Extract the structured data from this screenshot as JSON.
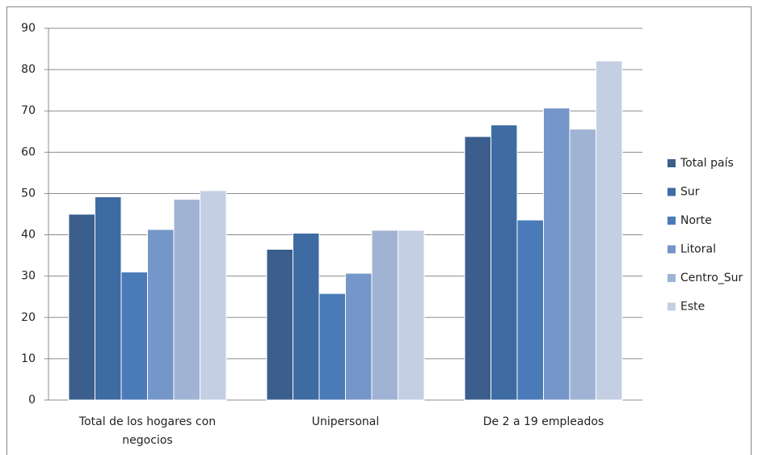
{
  "chart_data": {
    "type": "bar",
    "categories": [
      "Total de los hogares con negocios",
      "Unipersonal",
      "De 2 a 19 empleados"
    ],
    "series": [
      {
        "name": "Total país",
        "color": "#3b5e8c",
        "values": [
          45,
          36.5,
          63.8
        ]
      },
      {
        "name": "Sur",
        "color": "#3f6ba3",
        "values": [
          49.2,
          40.4,
          66.6
        ]
      },
      {
        "name": "Norte",
        "color": "#4a7bb8",
        "values": [
          31,
          25.8,
          43.6
        ]
      },
      {
        "name": "Litoral",
        "color": "#7596c8",
        "values": [
          41.3,
          30.7,
          70.7
        ]
      },
      {
        "name": "Centro_Sur",
        "color": "#a0b3d4",
        "values": [
          48.6,
          41.1,
          65.6
        ]
      },
      {
        "name": "Este",
        "color": "#c4cfe3",
        "values": [
          50.7,
          41.1,
          82.1
        ]
      }
    ],
    "ylim": [
      0,
      90
    ],
    "yticks": [
      0,
      10,
      20,
      30,
      40,
      50,
      60,
      70,
      80,
      90
    ],
    "grid": true,
    "legend": "right"
  }
}
